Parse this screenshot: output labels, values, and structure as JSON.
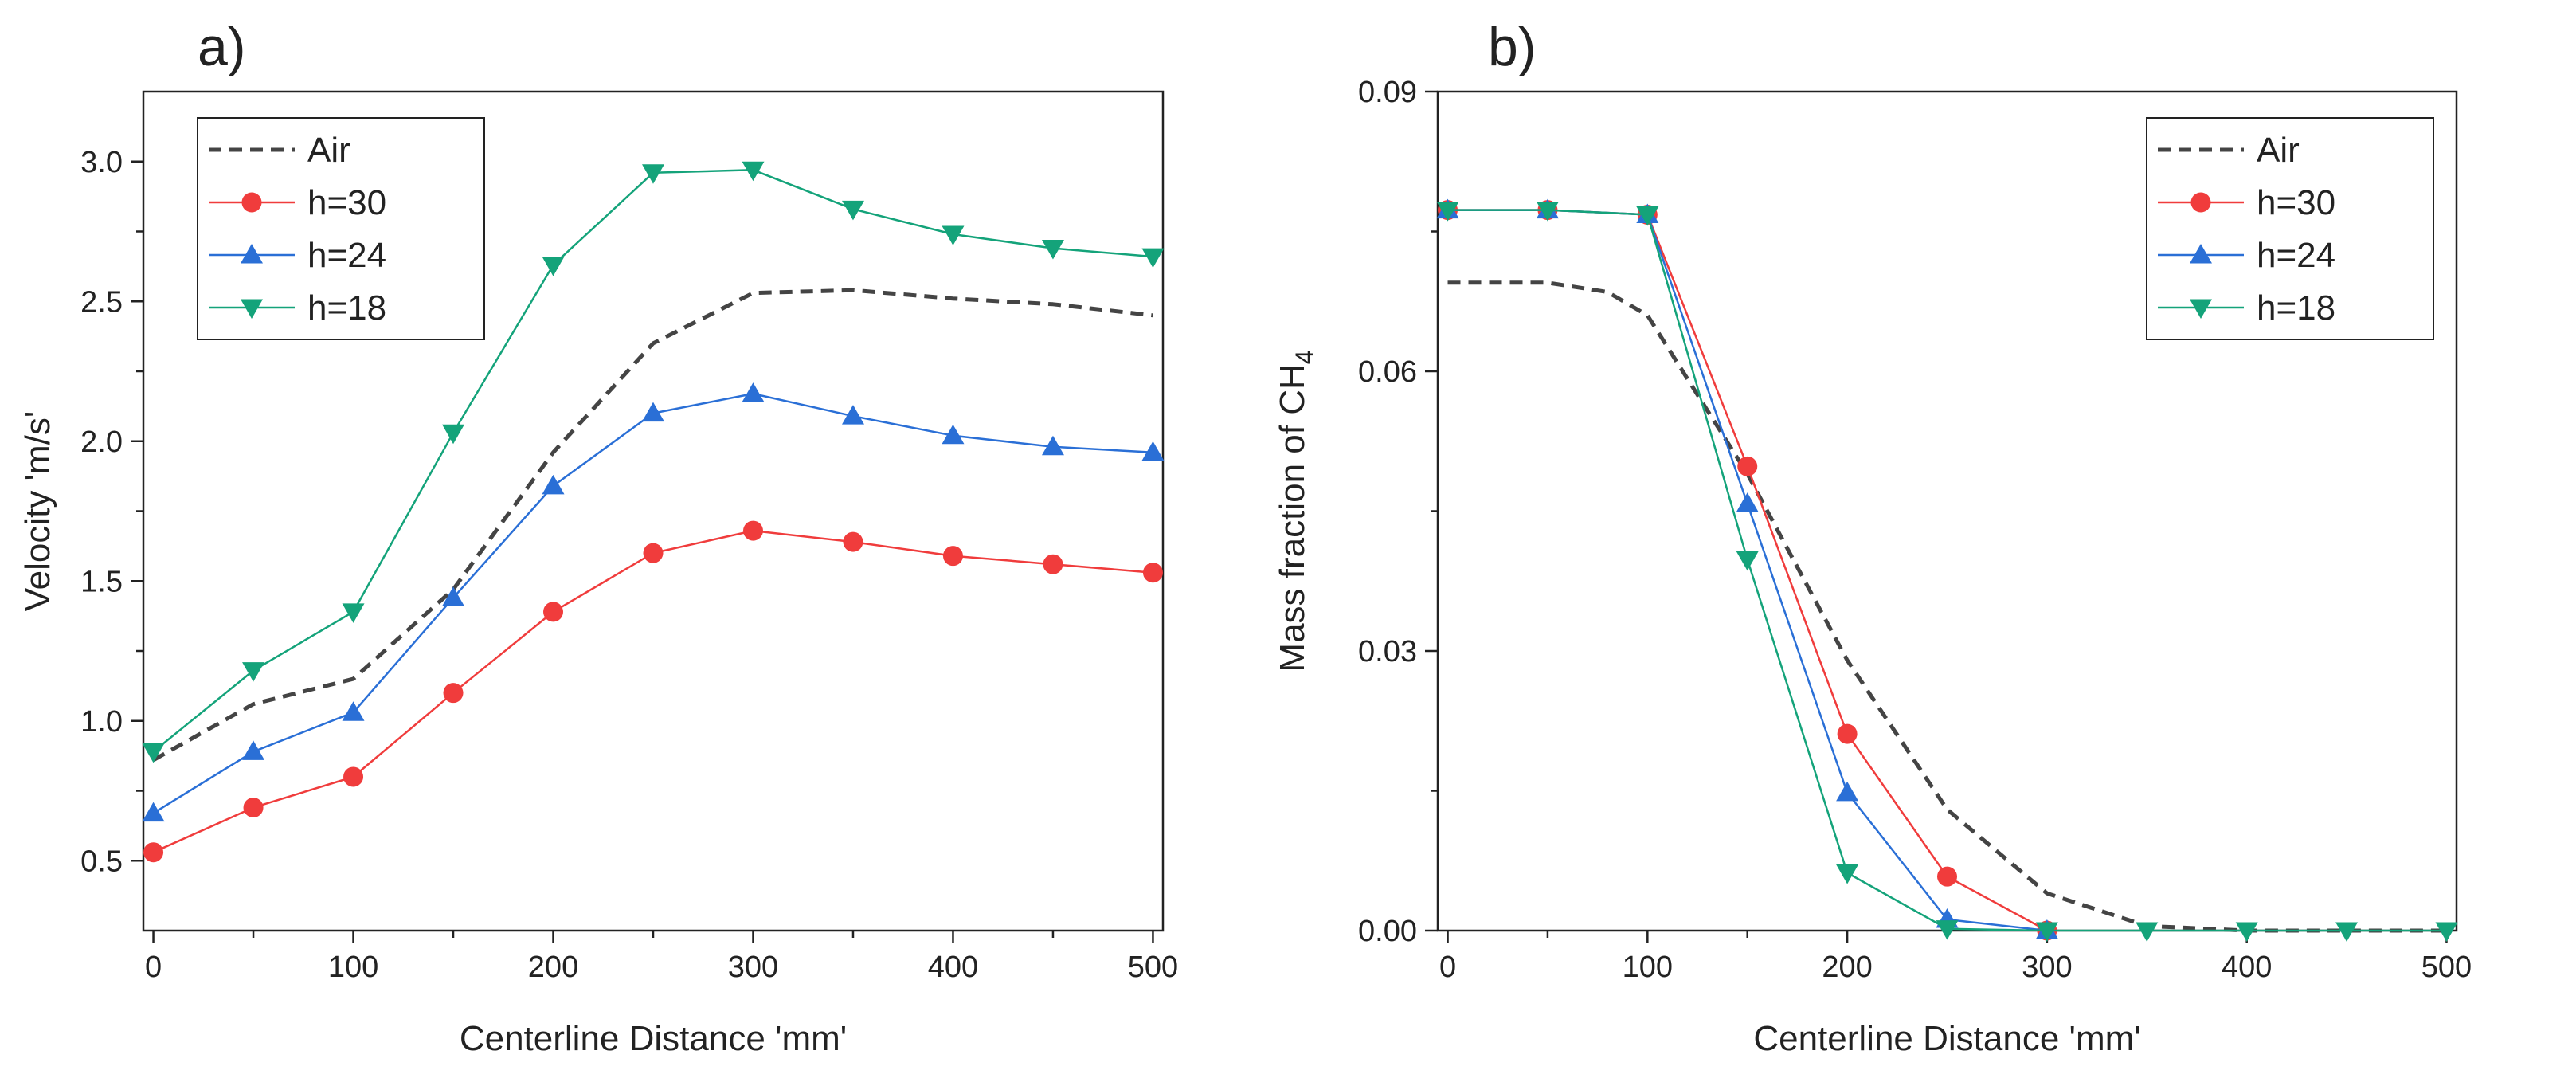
{
  "chart_data": [
    {
      "type": "line",
      "panel_label": "a)",
      "title": "",
      "xlabel": "Centerline Distance 'mm'",
      "ylabel": "Velocity 'm/s'",
      "xlim": [
        -5,
        505
      ],
      "ylim": [
        0.25,
        3.25
      ],
      "xticks": [
        0,
        100,
        200,
        300,
        400,
        500
      ],
      "xtick_labels": [
        "0",
        "100",
        "200",
        "300",
        "400",
        "500"
      ],
      "yticks": [
        0.5,
        1.0,
        1.5,
        2.0,
        2.5,
        3.0
      ],
      "ytick_labels": [
        "0.5",
        "1.0",
        "1.5",
        "2.0",
        "2.5",
        "3.0"
      ],
      "grid": false,
      "legend_position": "top-left",
      "series": [
        {
          "name": "Air",
          "color": "#444444",
          "style": "dashed",
          "marker": "none",
          "x": [
            0,
            50,
            100,
            150,
            200,
            250,
            300,
            350,
            400,
            450,
            500
          ],
          "values": [
            0.86,
            1.06,
            1.15,
            1.47,
            1.96,
            2.35,
            2.53,
            2.54,
            2.51,
            2.49,
            2.45
          ]
        },
        {
          "name": "h=30",
          "color": "#f03c3c",
          "style": "solid",
          "marker": "circle",
          "x": [
            0,
            50,
            100,
            150,
            200,
            250,
            300,
            350,
            400,
            450,
            500
          ],
          "values": [
            0.53,
            0.69,
            0.8,
            1.1,
            1.39,
            1.6,
            1.68,
            1.64,
            1.59,
            1.56,
            1.53
          ]
        },
        {
          "name": "h=24",
          "color": "#2a6fd6",
          "style": "solid",
          "marker": "triangle-up",
          "x": [
            0,
            50,
            100,
            150,
            200,
            250,
            300,
            350,
            400,
            450,
            500
          ],
          "values": [
            0.67,
            0.89,
            1.03,
            1.44,
            1.84,
            2.1,
            2.17,
            2.09,
            2.02,
            1.98,
            1.96
          ]
        },
        {
          "name": "h=18",
          "color": "#14a37a",
          "style": "solid",
          "marker": "triangle-down",
          "x": [
            0,
            50,
            100,
            150,
            200,
            250,
            300,
            350,
            400,
            450,
            500
          ],
          "values": [
            0.89,
            1.18,
            1.39,
            2.03,
            2.63,
            2.96,
            2.97,
            2.83,
            2.74,
            2.69,
            2.66
          ]
        }
      ]
    },
    {
      "type": "line",
      "panel_label": "b)",
      "title": "",
      "xlabel": "Centerline Distance 'mm'",
      "ylabel": "Mass fraction of CH",
      "ylabel_subscript": "4",
      "xlim": [
        -5,
        505
      ],
      "ylim": [
        0.0,
        0.09
      ],
      "xticks": [
        0,
        100,
        200,
        300,
        400,
        500
      ],
      "xtick_labels": [
        "0",
        "100",
        "200",
        "300",
        "400",
        "500"
      ],
      "yticks": [
        0.0,
        0.03,
        0.06,
        0.09
      ],
      "ytick_labels": [
        "0.00",
        "0.03",
        "0.06",
        "0.09"
      ],
      "grid": false,
      "legend_position": "top-right",
      "series": [
        {
          "name": "Air",
          "color": "#444444",
          "style": "dashed",
          "marker": "none",
          "x": [
            0,
            50,
            80,
            100,
            150,
            200,
            250,
            300,
            350,
            400,
            450,
            500
          ],
          "values": [
            0.0695,
            0.0695,
            0.0685,
            0.066,
            0.049,
            0.029,
            0.013,
            0.004,
            0.0005,
            0.0,
            0.0,
            0.0
          ]
        },
        {
          "name": "h=30",
          "color": "#f03c3c",
          "style": "solid",
          "marker": "circle",
          "x": [
            0,
            50,
            100,
            150,
            200,
            250,
            300
          ],
          "values": [
            0.0773,
            0.0773,
            0.0768,
            0.0498,
            0.0211,
            0.0058,
            0.0
          ]
        },
        {
          "name": "h=24",
          "color": "#2a6fd6",
          "style": "solid",
          "marker": "triangle-up",
          "x": [
            0,
            50,
            100,
            150,
            200,
            250,
            300
          ],
          "values": [
            0.0773,
            0.0773,
            0.0768,
            0.0458,
            0.0148,
            0.0012,
            0.0
          ]
        },
        {
          "name": "h=18",
          "color": "#14a37a",
          "style": "solid",
          "marker": "triangle-down",
          "x": [
            0,
            50,
            100,
            150,
            200,
            250,
            300,
            350,
            400,
            450,
            500
          ],
          "values": [
            0.0773,
            0.0773,
            0.0768,
            0.0398,
            0.0062,
            0.0002,
            0.0,
            0.0,
            0.0,
            0.0,
            0.0
          ]
        }
      ]
    }
  ]
}
